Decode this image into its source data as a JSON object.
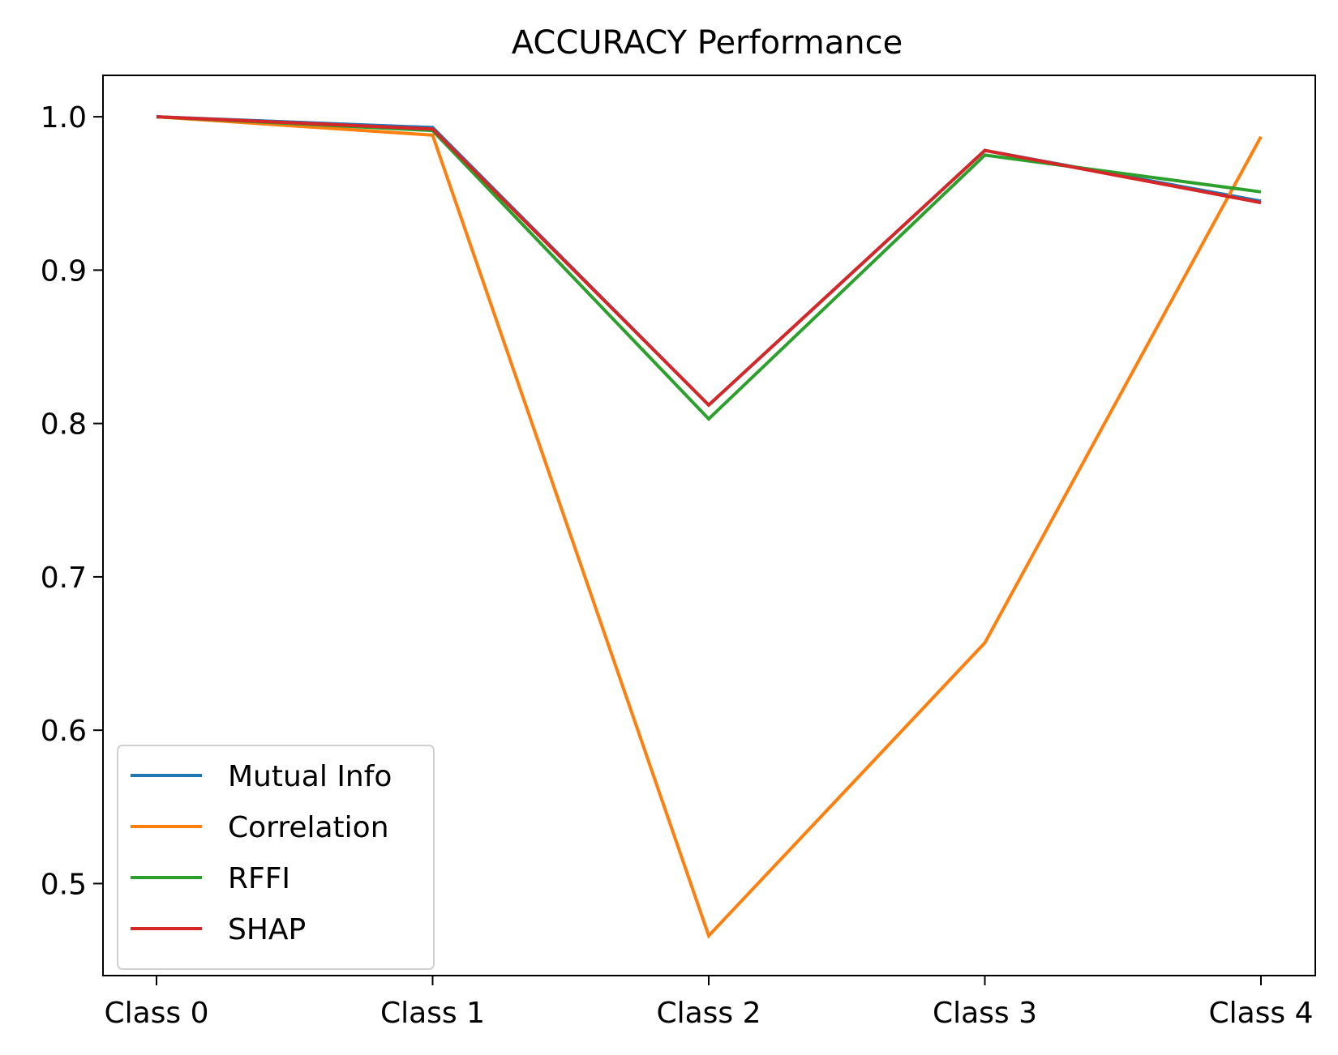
{
  "chart_data": {
    "type": "line",
    "title": "ACCURACY Performance",
    "xlabel": "",
    "ylabel": "",
    "categories": [
      "Class 0",
      "Class 1",
      "Class 2",
      "Class 3",
      "Class 4"
    ],
    "ylim": [
      0.44,
      1.027
    ],
    "yticks": [
      "0.5",
      "0.6",
      "0.7",
      "0.8",
      "0.9",
      "1.0"
    ],
    "grid": false,
    "legend_position": "lower-left",
    "series": [
      {
        "name": "Mutual Info",
        "color": "#1f77b4",
        "values": [
          1.0,
          0.993,
          0.812,
          0.978,
          0.945
        ]
      },
      {
        "name": "Correlation",
        "color": "#ff7f0e",
        "values": [
          1.0,
          0.988,
          0.466,
          0.657,
          0.987
        ]
      },
      {
        "name": "RFFI",
        "color": "#2ca02c",
        "values": [
          1.0,
          0.991,
          0.803,
          0.975,
          0.951
        ]
      },
      {
        "name": "SHAP",
        "color": "#d62728",
        "values": [
          1.0,
          0.992,
          0.812,
          0.978,
          0.944
        ]
      }
    ]
  }
}
